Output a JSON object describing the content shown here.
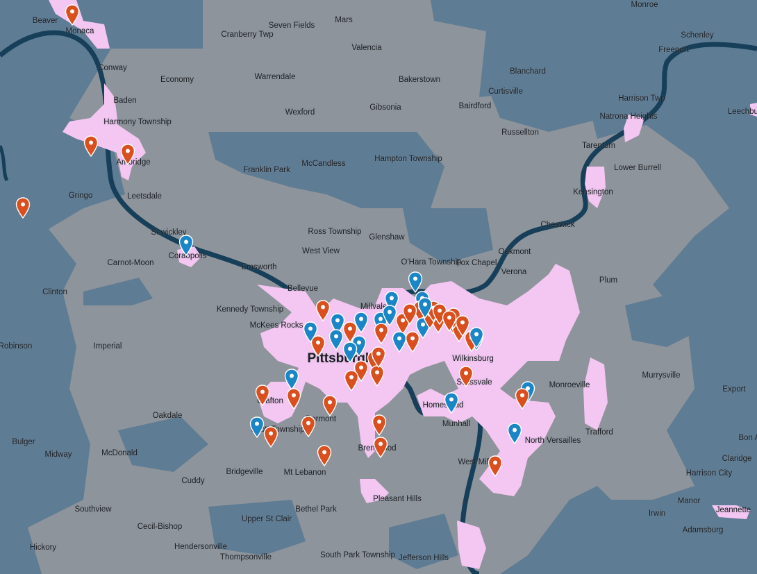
{
  "map": {
    "colors": {
      "water": "#173f59",
      "county_dark": "#5e7c94",
      "county_light": "#8e949b",
      "coverage_area": "#f4c6f2",
      "pin_orange": "#d9501e",
      "pin_blue": "#1b86c6"
    },
    "places": [
      {
        "name": "Monroe"
      },
      {
        "name": "Schenley"
      },
      {
        "name": "Freeport"
      },
      {
        "name": "Beaver"
      },
      {
        "name": "Monaca"
      },
      {
        "name": "Cranberry Twp"
      },
      {
        "name": "Seven Fields"
      },
      {
        "name": "Mars"
      },
      {
        "name": "Valencia"
      },
      {
        "name": "Conway"
      },
      {
        "name": "Economy"
      },
      {
        "name": "Warrendale"
      },
      {
        "name": "Bakerstown"
      },
      {
        "name": "Blanchard"
      },
      {
        "name": "Curtisville"
      },
      {
        "name": "Baden"
      },
      {
        "name": "Harmony Township"
      },
      {
        "name": "Gibsonia"
      },
      {
        "name": "Bairdford"
      },
      {
        "name": "Harrison Twp"
      },
      {
        "name": "Natrona Heights"
      },
      {
        "name": "Wexford"
      },
      {
        "name": "Russellton"
      },
      {
        "name": "Tarentum"
      },
      {
        "name": "Hampton Township"
      },
      {
        "name": "McCandless"
      },
      {
        "name": "Franklin Park"
      },
      {
        "name": "Lower Burrell"
      },
      {
        "name": "Ambridge"
      },
      {
        "name": "Gringo"
      },
      {
        "name": "Leetsdale"
      },
      {
        "name": "Kensington"
      },
      {
        "name": "Cheswick"
      },
      {
        "name": "Sewickley"
      },
      {
        "name": "Coraopolis"
      },
      {
        "name": "Ross Township"
      },
      {
        "name": "Glenshaw"
      },
      {
        "name": "O'Hara Township"
      },
      {
        "name": "Oakmont"
      },
      {
        "name": "West View"
      },
      {
        "name": "Carnot-Moon"
      },
      {
        "name": "Emsworth"
      },
      {
        "name": "Fox Chapel"
      },
      {
        "name": "Verona"
      },
      {
        "name": "Clinton"
      },
      {
        "name": "Bellevue"
      },
      {
        "name": "Plum"
      },
      {
        "name": "Kennedy Township"
      },
      {
        "name": "McKees Rocks"
      },
      {
        "name": "Millvale"
      },
      {
        "name": "Robinson"
      },
      {
        "name": "Imperial"
      },
      {
        "name": "Pittsburgh"
      },
      {
        "name": "Wilkinsburg"
      },
      {
        "name": "Swissvale"
      },
      {
        "name": "Monroeville"
      },
      {
        "name": "Murrysville"
      },
      {
        "name": "Export"
      },
      {
        "name": "Crafton"
      },
      {
        "name": "Homestead"
      },
      {
        "name": "Dormont"
      },
      {
        "name": "Scott Township"
      },
      {
        "name": "Munhall"
      },
      {
        "name": "Oakdale"
      },
      {
        "name": "Bulger"
      },
      {
        "name": "North Versailles"
      },
      {
        "name": "Trafford"
      },
      {
        "name": "Brentwood"
      },
      {
        "name": "Midway"
      },
      {
        "name": "McDonald"
      },
      {
        "name": "West Mifflin"
      },
      {
        "name": "Claridge"
      },
      {
        "name": "Bridgeville"
      },
      {
        "name": "Mt Lebanon"
      },
      {
        "name": "Harrison City"
      },
      {
        "name": "Cuddy"
      },
      {
        "name": "Pleasant Hills"
      },
      {
        "name": "Manor"
      },
      {
        "name": "Southview"
      },
      {
        "name": "Bethel Park"
      },
      {
        "name": "Irwin"
      },
      {
        "name": "Upper St Clair"
      },
      {
        "name": "Jeannette"
      },
      {
        "name": "Cecil-Bishop"
      },
      {
        "name": "Adamsburg"
      },
      {
        "name": "Hendersonville"
      },
      {
        "name": "Hickory"
      },
      {
        "name": "South Park Township"
      },
      {
        "name": "Thompsonville"
      },
      {
        "name": "Jefferson Hills"
      },
      {
        "name": "Leechburg"
      },
      {
        "name": "Bon Air"
      }
    ],
    "pins": [
      {
        "type": "orange"
      },
      {
        "type": "orange"
      },
      {
        "type": "orange"
      },
      {
        "type": "orange"
      },
      {
        "type": "blue"
      },
      {
        "type": "blue"
      },
      {
        "type": "orange"
      },
      {
        "type": "blue"
      },
      {
        "type": "blue"
      },
      {
        "type": "blue"
      },
      {
        "type": "blue"
      },
      {
        "type": "orange"
      },
      {
        "type": "blue"
      },
      {
        "type": "blue"
      },
      {
        "type": "blue"
      },
      {
        "type": "orange"
      },
      {
        "type": "orange"
      },
      {
        "type": "blue"
      },
      {
        "type": "blue"
      },
      {
        "type": "blue"
      },
      {
        "type": "orange"
      },
      {
        "type": "orange"
      },
      {
        "type": "orange"
      },
      {
        "type": "blue"
      },
      {
        "type": "orange"
      },
      {
        "type": "orange"
      },
      {
        "type": "orange"
      },
      {
        "type": "orange"
      },
      {
        "type": "orange"
      },
      {
        "type": "orange"
      },
      {
        "type": "orange"
      },
      {
        "type": "orange"
      },
      {
        "type": "blue"
      },
      {
        "type": "orange"
      },
      {
        "type": "orange"
      },
      {
        "type": "orange"
      },
      {
        "type": "orange"
      },
      {
        "type": "blue"
      },
      {
        "type": "orange"
      },
      {
        "type": "orange"
      },
      {
        "type": "orange"
      },
      {
        "type": "orange"
      },
      {
        "type": "blue"
      },
      {
        "type": "orange"
      },
      {
        "type": "blue"
      },
      {
        "type": "orange"
      },
      {
        "type": "blue"
      },
      {
        "type": "orange"
      },
      {
        "type": "orange"
      },
      {
        "type": "orange"
      },
      {
        "type": "orange"
      },
      {
        "type": "orange"
      },
      {
        "type": "orange"
      },
      {
        "type": "orange"
      },
      {
        "type": "blue"
      },
      {
        "type": "blue"
      },
      {
        "type": "orange"
      },
      {
        "type": "blue"
      },
      {
        "type": "blue"
      },
      {
        "type": "orange"
      }
    ],
    "pin_icon_name": "map-marker-icon"
  }
}
